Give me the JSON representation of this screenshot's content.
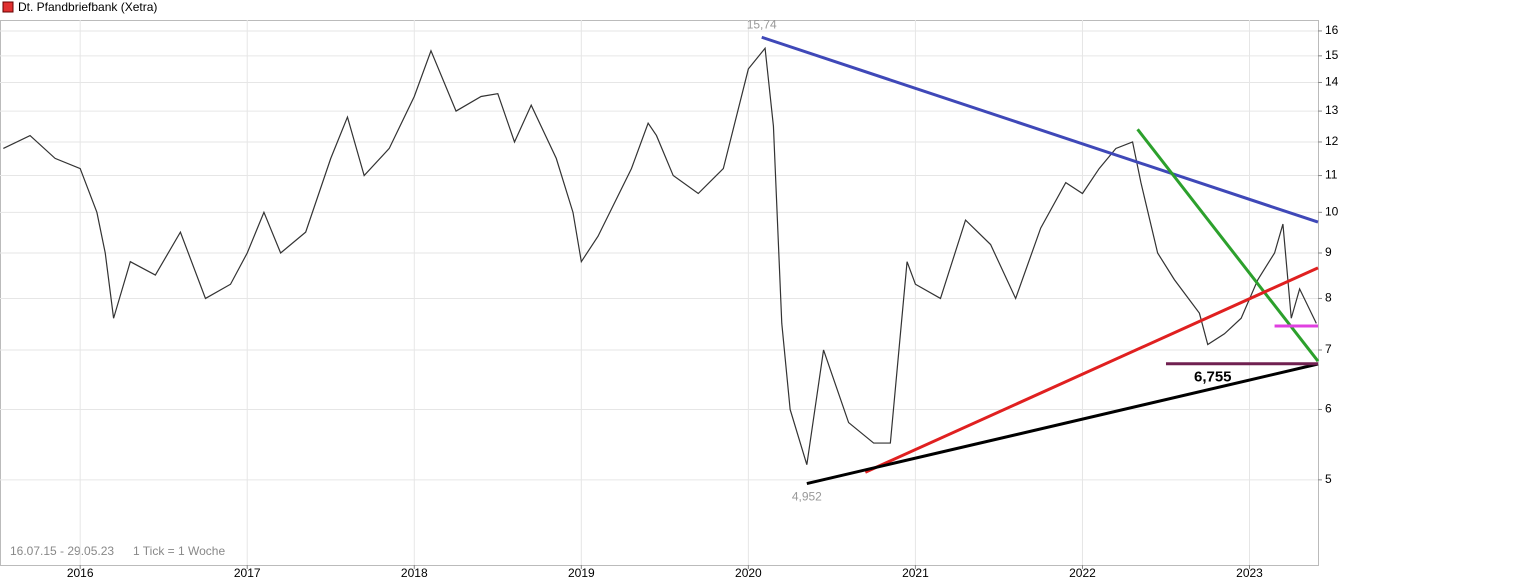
{
  "chart_data": {
    "type": "line",
    "title": "Dt. Pfandbriefbank (Xetra)",
    "range_label": "16.07.15 - 29.05.23",
    "tick_label": "1 Tick = 1 Woche",
    "log_scale": true,
    "grid": true,
    "color": "#333333",
    "x": [
      2015.54,
      2015.7,
      2015.85,
      2016.0,
      2016.1,
      2016.15,
      2016.2,
      2016.3,
      2016.45,
      2016.6,
      2016.75,
      2016.9,
      2017.0,
      2017.1,
      2017.2,
      2017.35,
      2017.5,
      2017.6,
      2017.7,
      2017.85,
      2018.0,
      2018.1,
      2018.25,
      2018.4,
      2018.5,
      2018.6,
      2018.7,
      2018.85,
      2018.95,
      2019.0,
      2019.1,
      2019.3,
      2019.4,
      2019.45,
      2019.55,
      2019.7,
      2019.85,
      2020.0,
      2020.1,
      2020.15,
      2020.2,
      2020.25,
      2020.35,
      2020.45,
      2020.6,
      2020.75,
      2020.85,
      2020.95,
      2021.0,
      2021.15,
      2021.3,
      2021.45,
      2021.6,
      2021.75,
      2021.9,
      2022.0,
      2022.1,
      2022.2,
      2022.3,
      2022.35,
      2022.45,
      2022.55,
      2022.7,
      2022.75,
      2022.85,
      2022.95,
      2023.05,
      2023.15,
      2023.2,
      2023.25,
      2023.3,
      2023.4
    ],
    "values": [
      11.8,
      12.2,
      11.5,
      11.2,
      10.0,
      9.0,
      7.6,
      8.8,
      8.5,
      9.5,
      8.0,
      8.3,
      9.0,
      10.0,
      9.0,
      9.5,
      11.5,
      12.8,
      11.0,
      11.8,
      13.5,
      15.2,
      13.0,
      13.5,
      13.6,
      12.0,
      13.2,
      11.5,
      10.0,
      8.8,
      9.4,
      11.2,
      12.6,
      12.2,
      11.0,
      10.5,
      11.2,
      14.5,
      15.3,
      12.5,
      7.5,
      6.0,
      5.2,
      7.0,
      5.8,
      5.5,
      5.5,
      8.8,
      8.3,
      8.0,
      9.8,
      9.2,
      8.0,
      9.6,
      10.8,
      10.5,
      11.2,
      11.8,
      12.0,
      10.8,
      9.0,
      8.4,
      7.7,
      7.1,
      7.3,
      7.6,
      8.4,
      9.0,
      9.7,
      7.6,
      8.2,
      7.5
    ],
    "xlim": [
      2015.52,
      2023.41
    ],
    "xticks": [
      2016,
      2017,
      2018,
      2019,
      2020,
      2021,
      2022,
      2023
    ],
    "ylim": [
      4.01,
      16.46
    ],
    "yticks": [
      5,
      6,
      7,
      8,
      9,
      10,
      11,
      12,
      13,
      14,
      15,
      16
    ],
    "trendlines": [
      {
        "color": "#3f48b8",
        "x": [
          2020.08,
          2023.41
        ],
        "y": [
          15.74,
          9.75
        ]
      },
      {
        "color": "#2ca02c",
        "x": [
          2022.33,
          2023.41
        ],
        "y": [
          12.4,
          6.8
        ]
      },
      {
        "color": "#e02020",
        "x": [
          2020.7,
          2023.41
        ],
        "y": [
          5.1,
          8.66
        ]
      },
      {
        "color": "#000000",
        "x": [
          2020.35,
          2023.41
        ],
        "y": [
          4.952,
          6.75
        ]
      },
      {
        "color": "#e040e0",
        "x": [
          2023.15,
          2023.41
        ],
        "y": [
          7.45,
          7.45
        ]
      },
      {
        "color": "#702050",
        "x": [
          2022.5,
          2023.41
        ],
        "y": [
          6.755,
          6.755
        ]
      }
    ],
    "annotations": [
      {
        "x": 2020.08,
        "y": 15.74,
        "label": "15,74",
        "color": "#999999"
      },
      {
        "x": 2020.35,
        "y": 4.952,
        "label": "4,952",
        "color": "#999999"
      },
      {
        "x": 2022.78,
        "y": 6.755,
        "label": "6,755",
        "color": "#000000"
      }
    ]
  }
}
